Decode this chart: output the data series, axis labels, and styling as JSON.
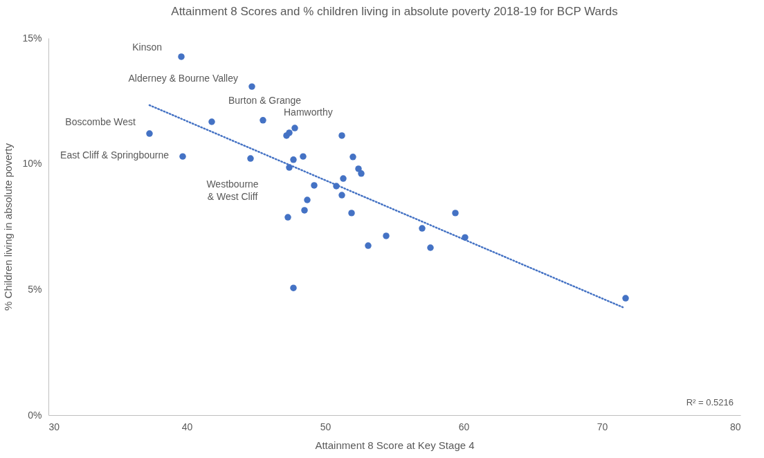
{
  "chart_data": {
    "type": "scatter",
    "title": "Attainment 8 Scores and % children living in absolute poverty 2018-19 for BCP Wards",
    "xlabel": "Attainment 8 Score at Key Stage 4",
    "ylabel": "% Children living in absolute poverty",
    "xlim": [
      30,
      80
    ],
    "xticks": [
      30,
      40,
      50,
      60,
      70,
      80
    ],
    "ylim": [
      0,
      15
    ],
    "yticks": [
      {
        "value": 0,
        "label": "0%"
      },
      {
        "value": 5,
        "label": "5%"
      },
      {
        "value": 10,
        "label": "10%"
      },
      {
        "value": 15,
        "label": "15%"
      }
    ],
    "grid": false,
    "series": [
      {
        "marker": "circle",
        "color": "#4472c4",
        "x": [
          39.6,
          44.7,
          41.8,
          45.5,
          37.3,
          39.7,
          44.6,
          47.2,
          47.4,
          47.8,
          51.2,
          48.4,
          47.7,
          47.4,
          52.0,
          52.4,
          52.6,
          51.3,
          49.2,
          50.8,
          51.2,
          48.7,
          48.5,
          47.3,
          51.9,
          59.4,
          57.0,
          54.4,
          53.1,
          57.6,
          60.1,
          47.7,
          71.7
        ],
        "values": [
          14.26,
          13.07,
          11.67,
          11.73,
          11.2,
          10.29,
          10.21,
          11.12,
          11.23,
          11.42,
          11.12,
          10.29,
          10.16,
          9.85,
          10.27,
          9.8,
          9.61,
          9.41,
          9.14,
          9.11,
          8.75,
          8.56,
          8.15,
          7.87,
          8.04,
          8.04,
          7.43,
          7.13,
          6.74,
          6.66,
          7.07,
          5.06,
          4.65
        ]
      },
      {
        "type": "line",
        "color": "#4472c4",
        "line_style": "dotted",
        "x": [
          37.3,
          71.5
        ],
        "values": [
          12.33,
          4.29
        ]
      }
    ],
    "annotations": [
      {
        "text": "Kinson",
        "x": 39.6,
        "y": 14.26
      },
      {
        "text": "Alderney & Bourne Valley",
        "x": 44.7,
        "y": 13.07
      },
      {
        "text": "Burton & Grange",
        "x": 41.8,
        "y": 11.67
      },
      {
        "text": "Hamworthy",
        "x": 45.5,
        "y": 11.73
      },
      {
        "text": "Boscombe West",
        "x": 37.3,
        "y": 11.2
      },
      {
        "text": "East Cliff & Springbourne",
        "x": 39.7,
        "y": 10.29
      },
      {
        "text": "Westbourne\n& West Cliff",
        "x": 44.6,
        "y": 10.21
      },
      "R² = 0.5216"
    ]
  }
}
